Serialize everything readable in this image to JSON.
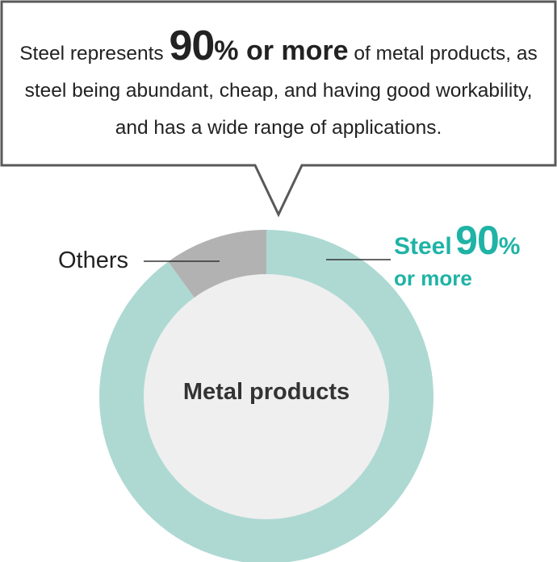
{
  "callout": {
    "text_before": "Steel represents ",
    "highlight_value": "90",
    "highlight_rest": "% or more",
    "text_after": " of metal products, as steel being abundant, cheap, and having good workability, and has a wide range of applications."
  },
  "chart_data": {
    "type": "pie",
    "center_label": "Metal products",
    "slices": [
      {
        "label": "Steel",
        "value": 90,
        "value_label": "90",
        "unit": "%",
        "qualifier": "or more",
        "color": "#aed9d3"
      },
      {
        "label": "Others",
        "value": 10,
        "color": "#b2b2b2"
      }
    ],
    "title": "",
    "legend": "none"
  },
  "colors": {
    "steel_text": "#1fb3a6",
    "steel_slice": "#aed9d3",
    "others_slice": "#b2b2b2",
    "center_fill": "#efefef",
    "callout_border": "#595959"
  }
}
